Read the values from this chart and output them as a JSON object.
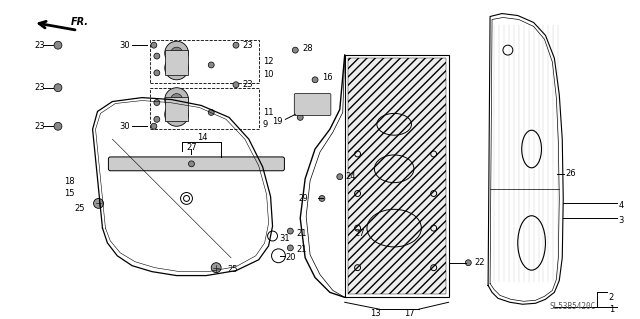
{
  "bg_color": "#ffffff",
  "line_color": "#000000",
  "part_number_code": "SL53B5420C",
  "figsize": [
    6.4,
    3.19
  ],
  "dpi": 100
}
